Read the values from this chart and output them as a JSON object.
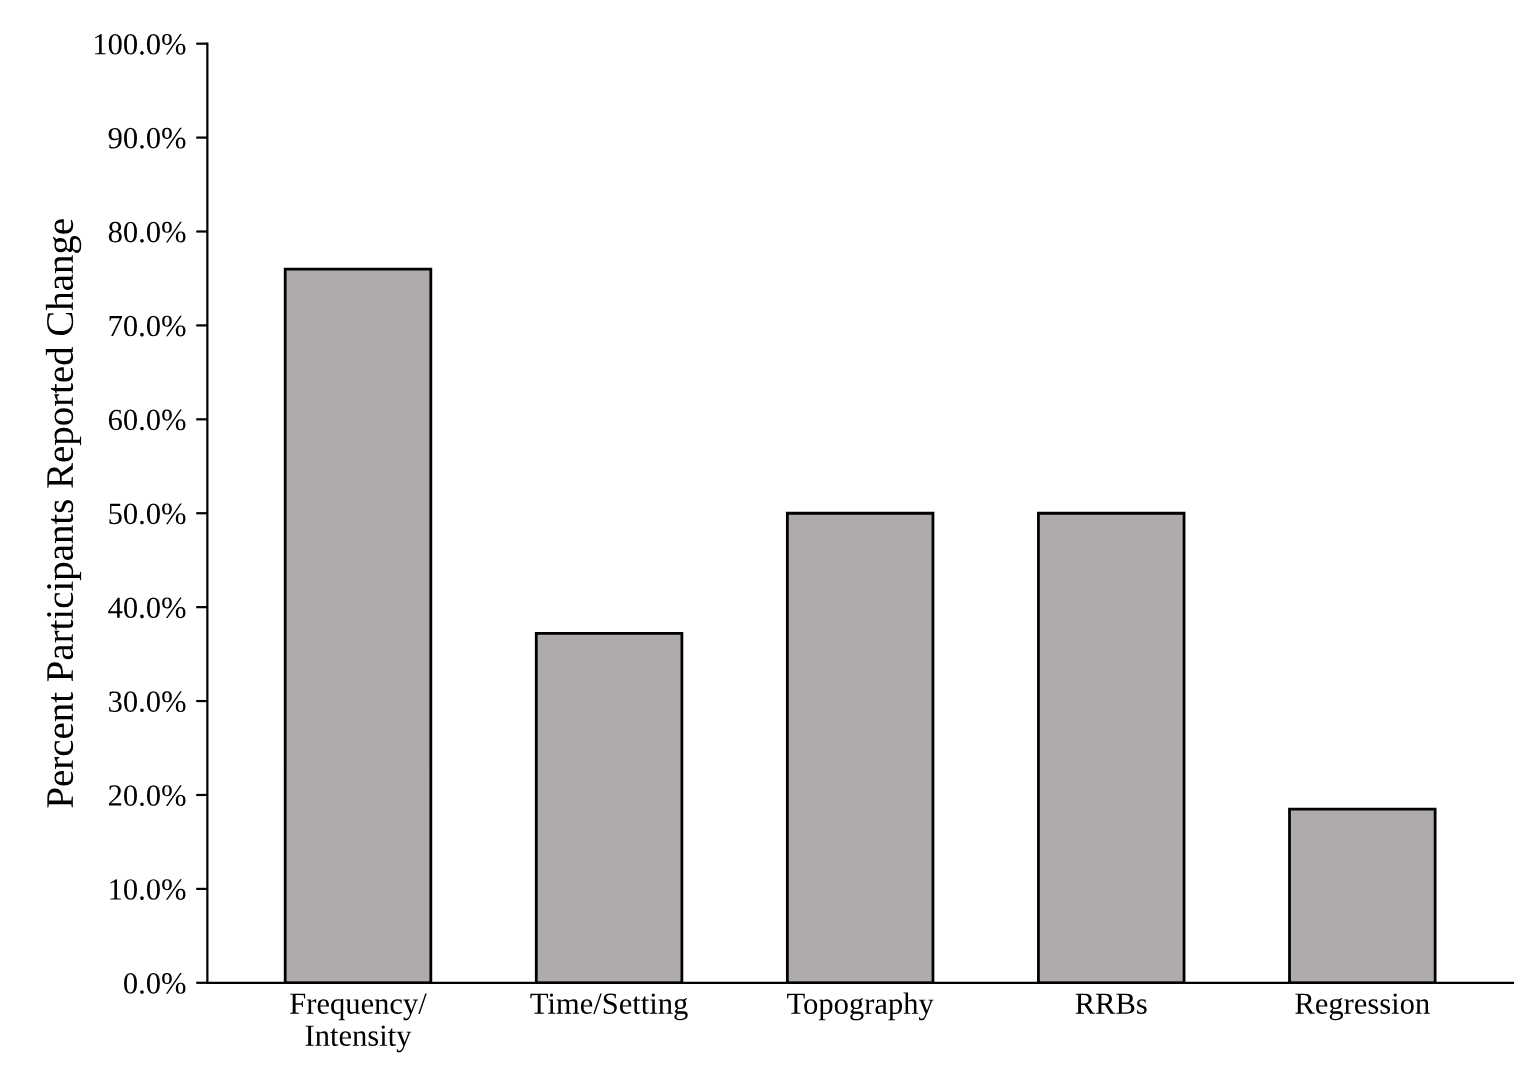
{
  "chart_data": {
    "type": "bar",
    "ylabel": "Percent Participants Reported Change",
    "categories": [
      "Frequency/\nIntensity",
      "Time/Setting",
      "Topography",
      "RRBs",
      "Regression"
    ],
    "values": [
      76,
      37.2,
      50,
      50,
      18.5
    ],
    "color": "#afabab",
    "ylim": [
      0,
      100
    ],
    "yticks": [
      {
        "value": 0,
        "label": "0.0%"
      },
      {
        "value": 10,
        "label": "10.0%"
      },
      {
        "value": 20,
        "label": "20.0%"
      },
      {
        "value": 30,
        "label": "30.0%"
      },
      {
        "value": 40,
        "label": "40.0%"
      },
      {
        "value": 50,
        "label": "50.0%"
      },
      {
        "value": 60,
        "label": "60.0%"
      },
      {
        "value": 70,
        "label": "70.0%"
      },
      {
        "value": 80,
        "label": "80.0%"
      },
      {
        "value": 90,
        "label": "90.0%"
      },
      {
        "value": 100,
        "label": "100.0%"
      }
    ],
    "grid": false
  }
}
